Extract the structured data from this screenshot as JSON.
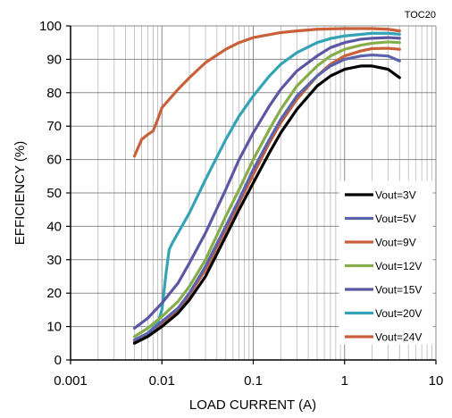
{
  "chart_data": {
    "type": "line",
    "tag": "TOC20",
    "xlabel": "LOAD CURRENT (A)",
    "ylabel": "EFFICIENCY (%)",
    "x_scale": "log",
    "xlim": [
      0.001,
      10
    ],
    "ylim": [
      0,
      100
    ],
    "x_ticks": [
      {
        "value": 0.001,
        "label": "0.001"
      },
      {
        "value": 0.01,
        "label": "0.01"
      },
      {
        "value": 0.1,
        "label": "0.1"
      },
      {
        "value": 1,
        "label": "1"
      },
      {
        "value": 10,
        "label": "10"
      }
    ],
    "y_ticks": [
      0,
      10,
      20,
      30,
      40,
      50,
      60,
      70,
      80,
      90,
      100
    ],
    "grid": true,
    "legend_position": "right",
    "series": [
      {
        "name": "Vout=3V",
        "color": "#000000",
        "points": [
          [
            0.005,
            5
          ],
          [
            0.007,
            7
          ],
          [
            0.01,
            10
          ],
          [
            0.015,
            14
          ],
          [
            0.02,
            18
          ],
          [
            0.03,
            25
          ],
          [
            0.05,
            37
          ],
          [
            0.07,
            45
          ],
          [
            0.1,
            53
          ],
          [
            0.15,
            62
          ],
          [
            0.2,
            68
          ],
          [
            0.3,
            75
          ],
          [
            0.5,
            82
          ],
          [
            0.7,
            85
          ],
          [
            1,
            87
          ],
          [
            1.5,
            88
          ],
          [
            2,
            88
          ],
          [
            3,
            87
          ],
          [
            4,
            84.5
          ]
        ]
      },
      {
        "name": "Vout=5V",
        "color": "#5b63ad",
        "points": [
          [
            0.005,
            6
          ],
          [
            0.007,
            8
          ],
          [
            0.01,
            11.5
          ],
          [
            0.015,
            15.5
          ],
          [
            0.02,
            20
          ],
          [
            0.03,
            28
          ],
          [
            0.05,
            40
          ],
          [
            0.07,
            48
          ],
          [
            0.1,
            57
          ],
          [
            0.15,
            66
          ],
          [
            0.2,
            72
          ],
          [
            0.3,
            79
          ],
          [
            0.5,
            85
          ],
          [
            0.7,
            88
          ],
          [
            1,
            90
          ],
          [
            1.5,
            91
          ],
          [
            2,
            91.3
          ],
          [
            3,
            91
          ],
          [
            4,
            89.5
          ]
        ]
      },
      {
        "name": "Vout=9V",
        "color": "#c9603a",
        "points": [
          [
            0.005,
            5.5
          ],
          [
            0.007,
            7.5
          ],
          [
            0.01,
            11
          ],
          [
            0.015,
            15
          ],
          [
            0.02,
            19.5
          ],
          [
            0.03,
            27
          ],
          [
            0.05,
            39
          ],
          [
            0.07,
            47
          ],
          [
            0.1,
            55.5
          ],
          [
            0.15,
            65
          ],
          [
            0.2,
            71
          ],
          [
            0.3,
            78
          ],
          [
            0.5,
            85
          ],
          [
            0.7,
            88.5
          ],
          [
            1,
            91
          ],
          [
            1.5,
            92.5
          ],
          [
            2,
            93.2
          ],
          [
            3,
            93.3
          ],
          [
            4,
            93
          ]
        ]
      },
      {
        "name": "Vout=12V",
        "color": "#86ad4a",
        "points": [
          [
            0.005,
            7
          ],
          [
            0.007,
            9.5
          ],
          [
            0.01,
            13
          ],
          [
            0.015,
            17.5
          ],
          [
            0.02,
            22
          ],
          [
            0.03,
            30
          ],
          [
            0.05,
            43
          ],
          [
            0.07,
            51
          ],
          [
            0.1,
            60
          ],
          [
            0.15,
            69
          ],
          [
            0.2,
            75
          ],
          [
            0.3,
            82
          ],
          [
            0.5,
            88
          ],
          [
            0.7,
            91
          ],
          [
            1,
            93
          ],
          [
            1.5,
            94.2
          ],
          [
            2,
            94.8
          ],
          [
            3,
            95.2
          ],
          [
            4,
            95
          ]
        ]
      },
      {
        "name": "Vout=15V",
        "color": "#5b57a5",
        "points": [
          [
            0.005,
            9.5
          ],
          [
            0.007,
            12.5
          ],
          [
            0.01,
            17
          ],
          [
            0.015,
            23
          ],
          [
            0.02,
            29
          ],
          [
            0.03,
            38
          ],
          [
            0.05,
            51
          ],
          [
            0.07,
            60
          ],
          [
            0.1,
            68
          ],
          [
            0.15,
            76
          ],
          [
            0.2,
            81
          ],
          [
            0.3,
            86.5
          ],
          [
            0.5,
            91
          ],
          [
            0.7,
            93.5
          ],
          [
            1,
            95
          ],
          [
            1.5,
            96
          ],
          [
            2,
            96.3
          ],
          [
            3,
            96.5
          ],
          [
            4,
            96.3
          ]
        ]
      },
      {
        "name": "Vout=20V",
        "color": "#35a3b6",
        "points": [
          [
            0.005,
            5.5
          ],
          [
            0.007,
            8
          ],
          [
            0.009,
            11
          ],
          [
            0.01,
            15
          ],
          [
            0.011,
            25
          ],
          [
            0.012,
            33
          ],
          [
            0.013,
            35
          ],
          [
            0.015,
            38
          ],
          [
            0.02,
            44
          ],
          [
            0.03,
            54
          ],
          [
            0.05,
            66
          ],
          [
            0.07,
            73
          ],
          [
            0.1,
            79
          ],
          [
            0.15,
            85
          ],
          [
            0.2,
            88.5
          ],
          [
            0.3,
            92
          ],
          [
            0.5,
            95
          ],
          [
            0.7,
            96.2
          ],
          [
            1,
            97
          ],
          [
            2,
            97.8
          ],
          [
            3,
            97.8
          ],
          [
            4,
            97.5
          ]
        ]
      },
      {
        "name": "Vout=24V",
        "color": "#c9603a",
        "points": [
          [
            0.005,
            61
          ],
          [
            0.006,
            66
          ],
          [
            0.007,
            67.5
          ],
          [
            0.008,
            68.5
          ],
          [
            0.009,
            72
          ],
          [
            0.01,
            75.5
          ],
          [
            0.015,
            81
          ],
          [
            0.02,
            84.5
          ],
          [
            0.03,
            89
          ],
          [
            0.05,
            93
          ],
          [
            0.07,
            95
          ],
          [
            0.1,
            96.5
          ],
          [
            0.2,
            98
          ],
          [
            0.3,
            98.5
          ],
          [
            0.5,
            99
          ],
          [
            1,
            99.2
          ],
          [
            2,
            99.2
          ],
          [
            3,
            99
          ],
          [
            4,
            98.5
          ]
        ]
      }
    ]
  }
}
